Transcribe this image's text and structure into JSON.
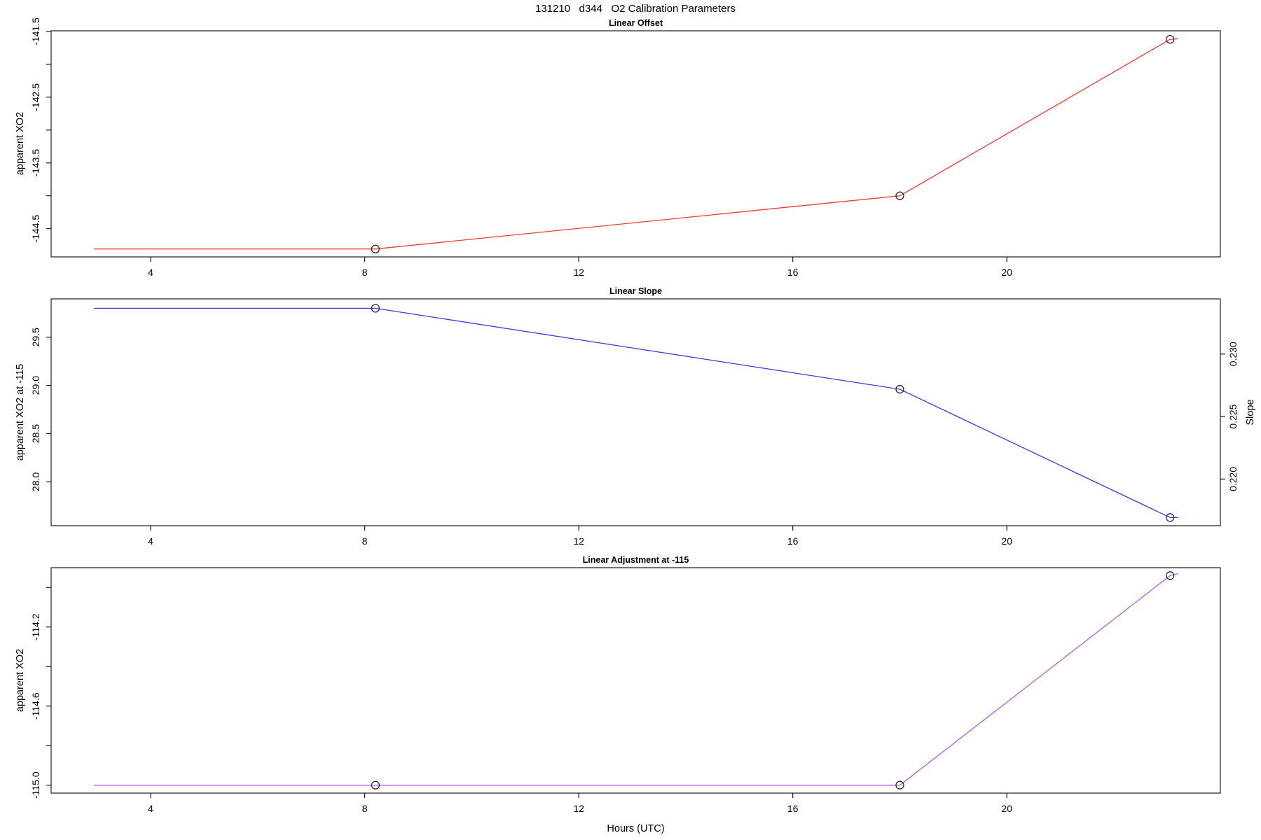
{
  "title": "131210   d344   O2 Calibration Parameters",
  "xlabel": "Hours (UTC)",
  "chart_data": [
    {
      "type": "line",
      "title": "Linear Offset",
      "ylabel": "apparent XO2",
      "line_color": "#f13a31",
      "marker_color": "#2a2a2a",
      "x": [
        2.94,
        8.2,
        18.0,
        23.05,
        23.2
      ],
      "y": [
        -144.81,
        -144.81,
        -144.0,
        -141.62,
        -141.61
      ],
      "marker_points": [
        1,
        2,
        3
      ],
      "xlim": [
        2.14,
        23.99
      ],
      "ylim_top": -141.49,
      "ylim_bottom": -144.93,
      "xticks": [
        4,
        8,
        12,
        16,
        20
      ],
      "xtick_labels": [
        "4",
        "8",
        "12",
        "16",
        "20"
      ],
      "ytick_values": [
        -141.5,
        -142.0,
        -142.5,
        -143.0,
        -143.5,
        -144.0,
        -144.5
      ],
      "ytick_labels": [
        "-141.5",
        "",
        "-142.5",
        "",
        "-143.5",
        "",
        "-144.5"
      ]
    },
    {
      "type": "line",
      "title": "Linear Slope",
      "ylabel": "apparent XO2 at -115",
      "ylabel_right": "Slope",
      "line_color": "#3a35e8",
      "marker_color": "#2a2a2a",
      "x": [
        2.94,
        8.2,
        18.0,
        23.05,
        23.2
      ],
      "y": [
        29.8,
        29.8,
        28.96,
        27.63,
        27.63
      ],
      "slope_values": [
        0.2337,
        0.2337,
        0.2272,
        0.2169,
        0.2169
      ],
      "marker_points": [
        1,
        2,
        3
      ],
      "xlim": [
        2.14,
        23.99
      ],
      "ylim_top": 29.897,
      "ylim_bottom": 27.545,
      "right_ylim_top": 0.23441,
      "right_ylim_bottom": 0.21627,
      "xticks": [
        4,
        8,
        12,
        16,
        20
      ],
      "xtick_labels": [
        "4",
        "8",
        "12",
        "16",
        "20"
      ],
      "ytick_values": [
        29.5,
        29.0,
        28.5,
        28.0
      ],
      "ytick_labels": [
        "29.5",
        "29.0",
        "28.5",
        "28.0"
      ],
      "right_ytick_values": [
        0.23,
        0.225,
        0.22
      ],
      "right_ytick_labels": [
        "0.230",
        "0.225",
        "0.220"
      ]
    },
    {
      "type": "line",
      "title": "Linear Adjustment at -115",
      "ylabel": "apparent XO2",
      "line_color": "#b45ce2",
      "marker_color": "#2a2a2a",
      "x": [
        2.94,
        8.2,
        18.0,
        23.05,
        23.2
      ],
      "y": [
        -115.0,
        -115.0,
        -115.0,
        -113.94,
        -113.93
      ],
      "marker_points": [
        1,
        2,
        3
      ],
      "xlim": [
        2.14,
        23.99
      ],
      "ylim_top": -113.9,
      "ylim_bottom": -115.04,
      "xticks": [
        4,
        8,
        12,
        16,
        20
      ],
      "xtick_labels": [
        "4",
        "8",
        "12",
        "16",
        "20"
      ],
      "ytick_values": [
        -114.0,
        -114.2,
        -114.4,
        -114.6,
        -114.8,
        -115.0
      ],
      "ytick_labels": [
        "",
        "-114.2",
        "",
        "-114.6",
        "",
        "-115.0"
      ]
    }
  ]
}
